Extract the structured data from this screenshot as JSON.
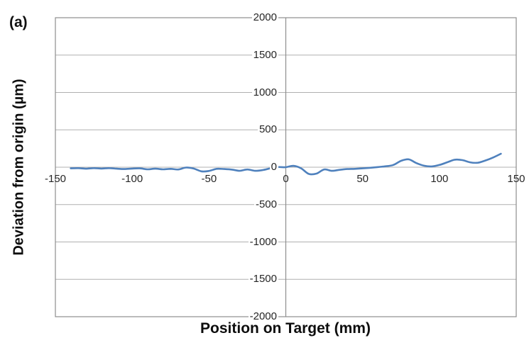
{
  "labels": {
    "panel": "(a)"
  },
  "colors": {
    "line": "#4F81BD",
    "gridline": "#b0b0b0",
    "border": "#8e8e8e",
    "axis": "#8e8e8e",
    "tick_text": "#262626",
    "title_text": "#0d0d0d",
    "background": "#ffffff"
  },
  "chart_data": {
    "type": "line",
    "title": "",
    "xlabel": "Position on Target (mm)",
    "ylabel": "Deviation from origin (µm)",
    "xlim": [
      -150,
      150
    ],
    "ylim": [
      -2000,
      2000
    ],
    "x_ticks": [
      "-150",
      "-100",
      "-50",
      "0",
      "50",
      "100",
      "150"
    ],
    "y_ticks": [
      "2000",
      "1500",
      "1000",
      "500",
      "0",
      "-500",
      "-1000",
      "-1500",
      "-2000"
    ],
    "grid": "horizontal-only, vertical axis drawn at x=0",
    "legend": "none",
    "series": [
      {
        "name": "deviation-trace",
        "color": "#4F81BD",
        "smoothed": true,
        "x": [
          -140,
          -135,
          -130,
          -125,
          -120,
          -115,
          -110,
          -105,
          -100,
          -95,
          -90,
          -85,
          -80,
          -75,
          -70,
          -65,
          -60,
          -55,
          -50,
          -45,
          -40,
          -35,
          -30,
          -25,
          -20,
          -15,
          -10,
          -5,
          0,
          5,
          10,
          15,
          20,
          25,
          30,
          35,
          40,
          45,
          50,
          55,
          60,
          65,
          70,
          75,
          80,
          85,
          90,
          95,
          100,
          105,
          110,
          115,
          120,
          125,
          130,
          135,
          140
        ],
        "y": [
          -15,
          -12,
          -20,
          -12,
          -18,
          -12,
          -20,
          -25,
          -18,
          -15,
          -28,
          -20,
          -28,
          -22,
          -30,
          -5,
          -18,
          -55,
          -50,
          -22,
          -25,
          -32,
          -48,
          -30,
          -48,
          -38,
          -15,
          2,
          0,
          18,
          -15,
          -90,
          -85,
          -30,
          -48,
          -35,
          -25,
          -22,
          -15,
          -8,
          2,
          12,
          30,
          85,
          105,
          55,
          20,
          10,
          30,
          65,
          100,
          95,
          65,
          60,
          90,
          130,
          180
        ]
      }
    ]
  }
}
